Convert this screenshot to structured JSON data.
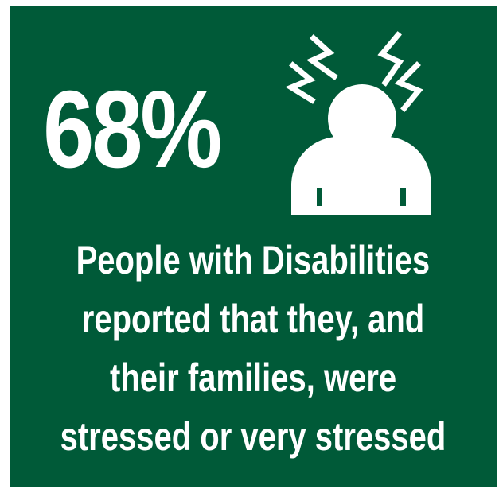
{
  "stat": {
    "value": "68%"
  },
  "caption": {
    "lines": [
      "People with Disabilities",
      "reported that they, and",
      "their families, were",
      "stressed or very stressed"
    ]
  },
  "icon": {
    "name": "stressed-person-icon"
  },
  "colors": {
    "background": "#005a38",
    "foreground": "#ffffff"
  }
}
